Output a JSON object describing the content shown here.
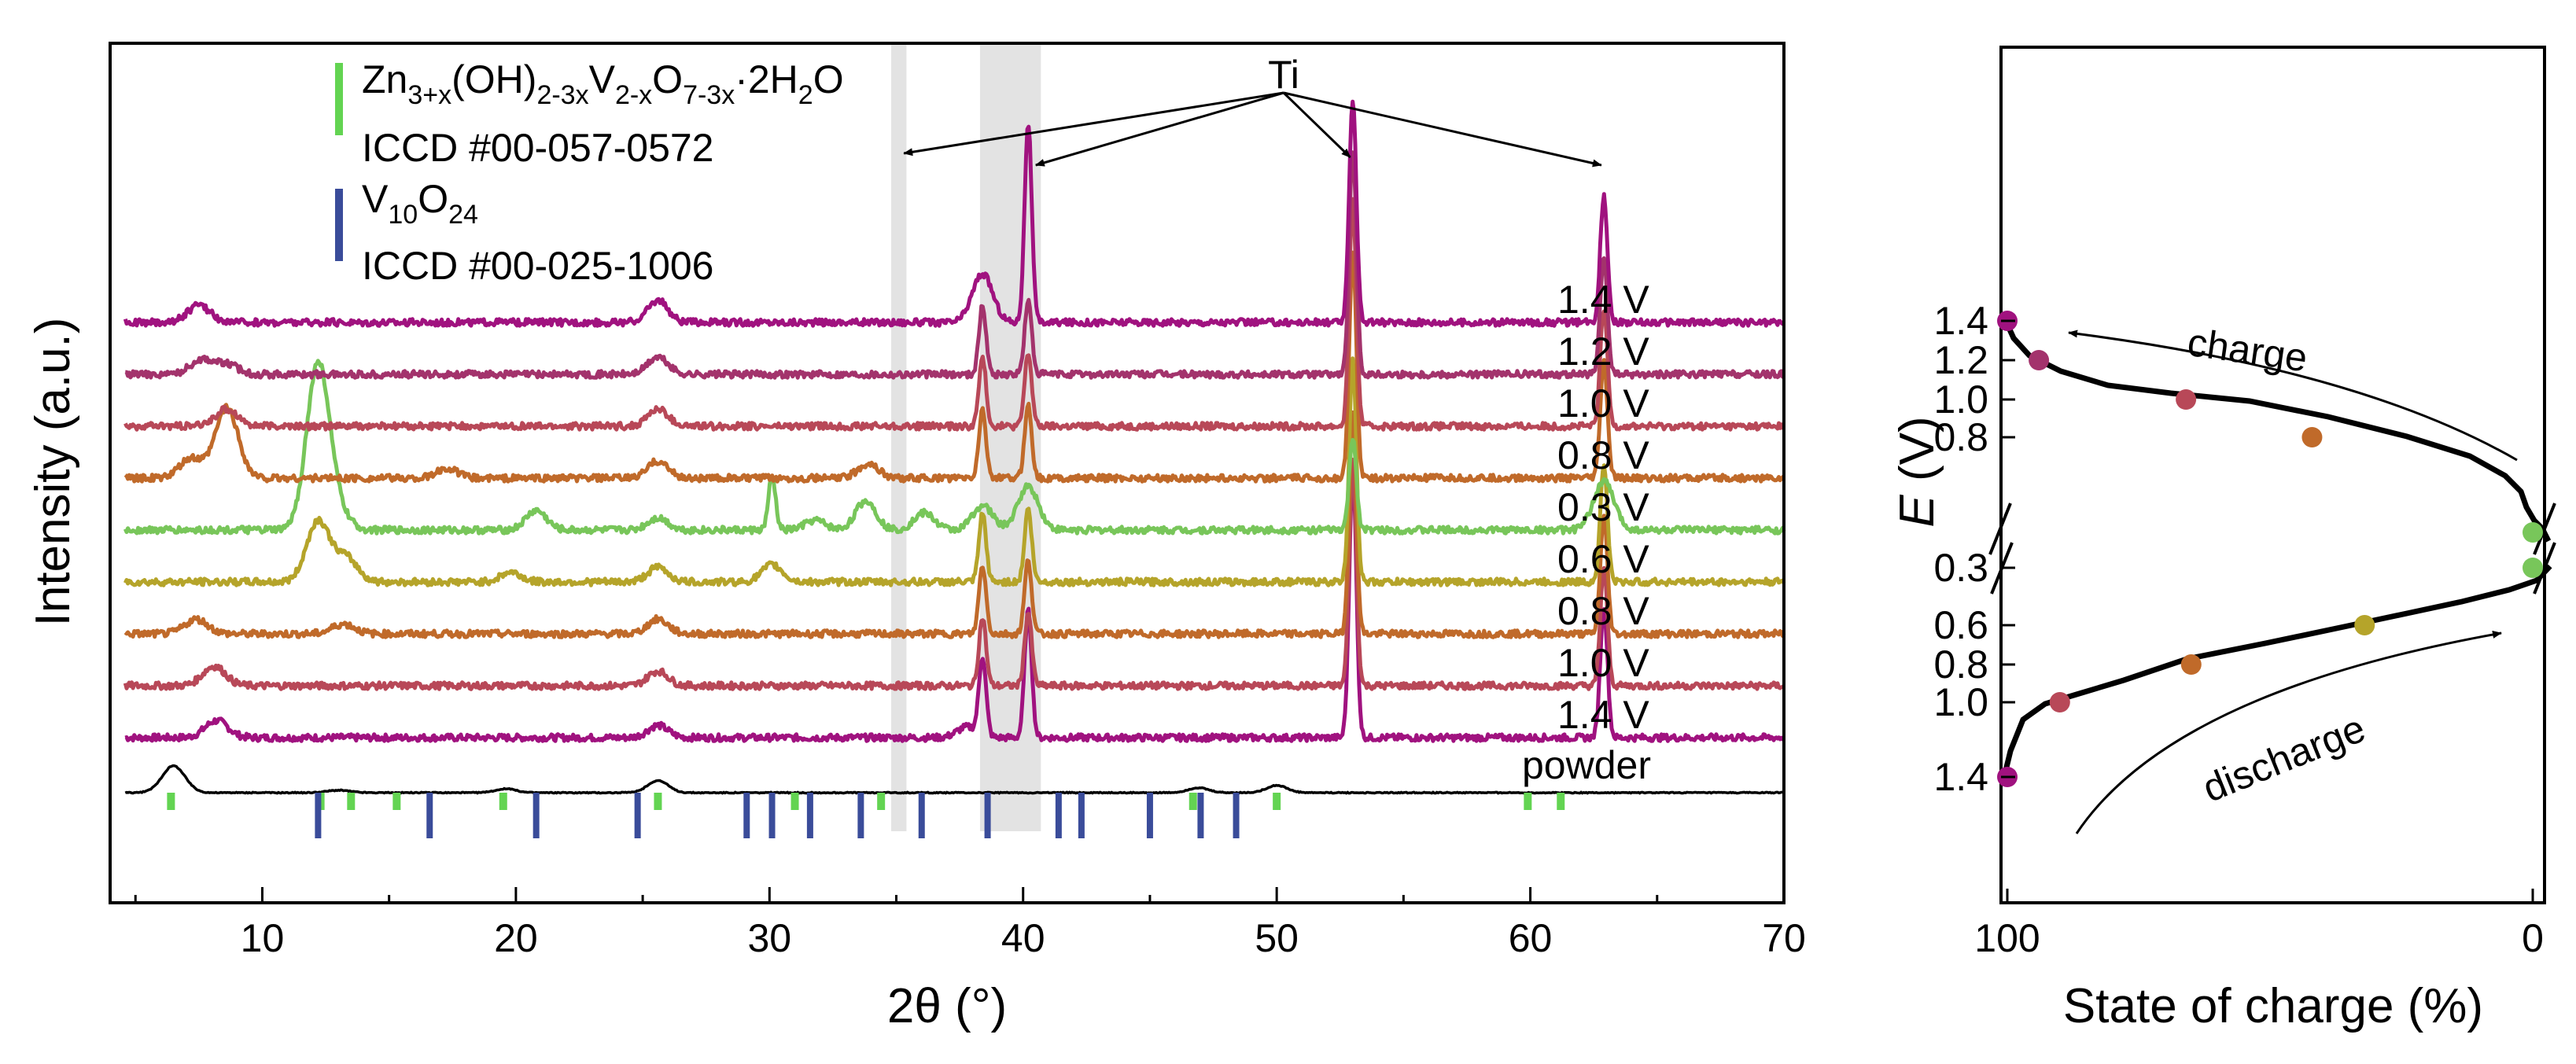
{
  "chart_data": [
    {
      "type": "line",
      "title": "",
      "xlabel": "2θ (°)",
      "ylabel": "Intensity (a.u.)",
      "xlim": [
        4,
        70
      ],
      "xticks": [
        "10",
        "20",
        "30",
        "40",
        "50",
        "60",
        "70"
      ],
      "grid": false,
      "annotation": "Ti",
      "ti_peaks": [
        35.1,
        40.2,
        53.0,
        62.9
      ],
      "shaded_regions": [
        [
          34.8,
          35.4
        ],
        [
          38.3,
          40.7
        ]
      ],
      "series": [
        {
          "name": "1.4 V",
          "color": "#a0127f",
          "label": "1.4 V",
          "peaks": [
            [
              8.2,
              0.35
            ],
            [
              25.6,
              0.25
            ],
            [
              37.8,
              0.22
            ],
            [
              38.4,
              1.6
            ],
            [
              40.2,
              2.6
            ],
            [
              53.0,
              5.5
            ],
            [
              62.9,
              2.7
            ]
          ]
        },
        {
          "name": "1.0 V",
          "color": "#b84858",
          "label": "1.0 V",
          "peaks": [
            [
              8.1,
              0.4
            ],
            [
              25.6,
              0.3
            ],
            [
              38.4,
              1.4
            ],
            [
              40.2,
              1.5
            ],
            [
              53.0,
              4.6
            ],
            [
              62.9,
              2.4
            ]
          ]
        },
        {
          "name": "0.8 V",
          "color": "#c06a2a",
          "label": "0.8 V",
          "peaks": [
            [
              7.4,
              0.3
            ],
            [
              13.2,
              0.2
            ],
            [
              25.6,
              0.3
            ],
            [
              38.4,
              1.4
            ],
            [
              40.2,
              1.5
            ],
            [
              53.0,
              4.6
            ],
            [
              62.9,
              2.4
            ]
          ]
        },
        {
          "name": "0.6 V",
          "color": "#b5a42a",
          "label": "0.6 V",
          "peaks": [
            [
              12.2,
              1.25
            ],
            [
              13.3,
              0.5
            ],
            [
              19.8,
              0.2
            ],
            [
              25.6,
              0.3
            ],
            [
              30.1,
              0.35
            ],
            [
              38.4,
              1.4
            ],
            [
              40.2,
              1.5
            ],
            [
              53.0,
              4.6
            ],
            [
              62.9,
              2.4
            ]
          ]
        },
        {
          "name": "0.3 V",
          "color": "#78c65a",
          "label": "0.3 V",
          "peaks": [
            [
              12.2,
              3.4
            ],
            [
              13.0,
              0.3
            ],
            [
              20.8,
              0.4
            ],
            [
              25.6,
              0.25
            ],
            [
              30.1,
              1.1
            ],
            [
              31.8,
              0.2
            ],
            [
              33.8,
              0.6
            ],
            [
              36.1,
              0.35
            ],
            [
              38.4,
              0.5
            ],
            [
              40.2,
              0.9
            ],
            [
              53.0,
              1.9
            ],
            [
              62.9,
              1.0
            ]
          ]
        },
        {
          "name": "0.8 V",
          "color": "#c06a2a",
          "label": "0.8 V",
          "peaks": [
            [
              7.2,
              0.4
            ],
            [
              8.6,
              1.45
            ],
            [
              17.3,
              0.2
            ],
            [
              25.6,
              0.35
            ],
            [
              33.9,
              0.3
            ],
            [
              38.4,
              1.4
            ],
            [
              40.2,
              1.5
            ],
            [
              53.0,
              4.6
            ],
            [
              62.9,
              2.4
            ]
          ]
        },
        {
          "name": "1.0 V",
          "color": "#b84858",
          "label": "1.0 V",
          "peaks": [
            [
              8.6,
              0.35
            ],
            [
              25.6,
              0.35
            ],
            [
              38.4,
              1.4
            ],
            [
              40.2,
              1.5
            ],
            [
              53.0,
              4.6
            ],
            [
              62.9,
              2.4
            ]
          ]
        },
        {
          "name": "1.2 V",
          "color": "#a3336c",
          "label": "1.2 V",
          "peaks": [
            [
              7.6,
              0.3
            ],
            [
              8.6,
              0.2
            ],
            [
              25.6,
              0.35
            ],
            [
              38.4,
              1.4
            ],
            [
              40.2,
              1.5
            ],
            [
              53.0,
              4.6
            ],
            [
              62.9,
              2.4
            ]
          ]
        },
        {
          "name": "1.4 V",
          "color": "#a0127f",
          "label": "1.4 V",
          "peaks": [
            [
              7.5,
              0.35
            ],
            [
              25.6,
              0.45
            ],
            [
              38.4,
              1.0
            ],
            [
              40.2,
              4.1
            ],
            [
              53.0,
              4.6
            ],
            [
              62.9,
              2.6
            ]
          ]
        }
      ],
      "powder": {
        "name": "powder",
        "color": "#000000",
        "label": "powder",
        "peaks": [
          [
            6.5,
            0.55
          ],
          [
            13.0,
            0.05
          ],
          [
            19.6,
            0.08
          ],
          [
            25.6,
            0.25
          ],
          [
            46.9,
            0.1
          ],
          [
            50.0,
            0.15
          ]
        ]
      },
      "reference_markers": [
        {
          "name": "Zn3+x(OH)2-3xV2-xO7-3x·2H2O",
          "icdd": "ICCD #00-057-0572",
          "color": "#63d452",
          "positions": [
            6.4,
            12.3,
            13.5,
            15.3,
            19.5,
            25.6,
            31.0,
            34.4,
            46.7,
            50.0,
            59.9,
            61.2
          ]
        },
        {
          "name": "V10O24",
          "icdd": "ICCD #00-025-1006",
          "color": "#3a4c9a",
          "positions": [
            12.2,
            16.6,
            20.8,
            24.8,
            29.1,
            30.1,
            31.6,
            33.6,
            36.0,
            38.6,
            41.4,
            42.3,
            45.0,
            47.0,
            48.4
          ]
        }
      ]
    },
    {
      "type": "line",
      "title": "",
      "xlabel": "State of charge (%)",
      "ylabel": "E (V)",
      "xlim": [
        100,
        0
      ],
      "xticks": [
        "100",
        "0"
      ],
      "yticks_charge": [
        "1.4",
        "1.2",
        "1.0",
        "0.8",
        "0.3"
      ],
      "yticks_discharge": [
        "0.6",
        "0.8",
        "1.0",
        "1.4"
      ],
      "annotations": [
        "charge",
        "discharge"
      ],
      "charge_points": [
        {
          "soc": 100,
          "E": 1.4,
          "color": "#a0127f"
        },
        {
          "soc": 94,
          "E": 1.2,
          "color": "#a3336c"
        },
        {
          "soc": 66,
          "E": 1.0,
          "color": "#b84858"
        },
        {
          "soc": 42,
          "E": 0.8,
          "color": "#c06a2a"
        },
        {
          "soc": 0,
          "E": 0.3,
          "color": "#78c65a"
        }
      ],
      "discharge_points": [
        {
          "soc": 0,
          "E": 0.3,
          "color": "#78c65a"
        },
        {
          "soc": 32,
          "E": 0.6,
          "color": "#b5a42a"
        },
        {
          "soc": 65,
          "E": 0.8,
          "color": "#c06a2a"
        },
        {
          "soc": 90,
          "E": 1.0,
          "color": "#b84858"
        },
        {
          "soc": 100,
          "E": 1.4,
          "color": "#a0127f"
        }
      ]
    }
  ],
  "legend": {
    "zn_formula": {
      "base1": "Zn",
      "sub1": "3+x",
      "base2": "(OH)",
      "sub2": "2-3x",
      "base3": "V",
      "sub3": "2-x",
      "base4": "O",
      "sub4": "7-3x",
      "base5": "·2H",
      "sub5": "2",
      "base6": "O"
    },
    "zn_icdd": "ICCD #00-057-0572",
    "v_formula": {
      "base1": "V",
      "sub1": "10",
      "base2": "O",
      "sub2": "24"
    },
    "v_icdd": "ICCD #00-025-1006"
  }
}
